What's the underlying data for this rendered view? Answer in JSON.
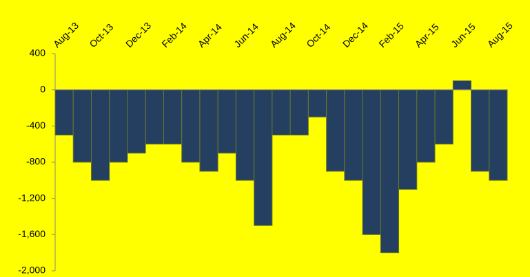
{
  "chart_data": {
    "type": "bar",
    "categories": [
      "Aug-13",
      null,
      "Oct-13",
      null,
      "Dec-13",
      null,
      "Feb-14",
      null,
      "Apr-14",
      null,
      "Jun-14",
      null,
      "Aug-14",
      null,
      "Oct-14",
      null,
      "Dec-14",
      null,
      "Feb-15",
      null,
      "Apr-15",
      null,
      "Jun-15",
      null,
      "Aug-15"
    ],
    "values": [
      -500,
      -800,
      -1000,
      -800,
      -700,
      -600,
      -600,
      -800,
      -900,
      -700,
      -1000,
      -1500,
      -500,
      -500,
      -300,
      -900,
      -1000,
      -1600,
      -1800,
      -1100,
      -800,
      -600,
      100,
      -900,
      -1000
    ],
    "color": "#243f60",
    "ylim": [
      -2000,
      400
    ],
    "yticks": [
      {
        "value": -2000,
        "label": "-2,000"
      },
      {
        "value": -1600,
        "label": "-1,600"
      },
      {
        "value": -1200,
        "label": "-1,200"
      },
      -800,
      -400,
      0,
      400
    ],
    "grid": false
  }
}
